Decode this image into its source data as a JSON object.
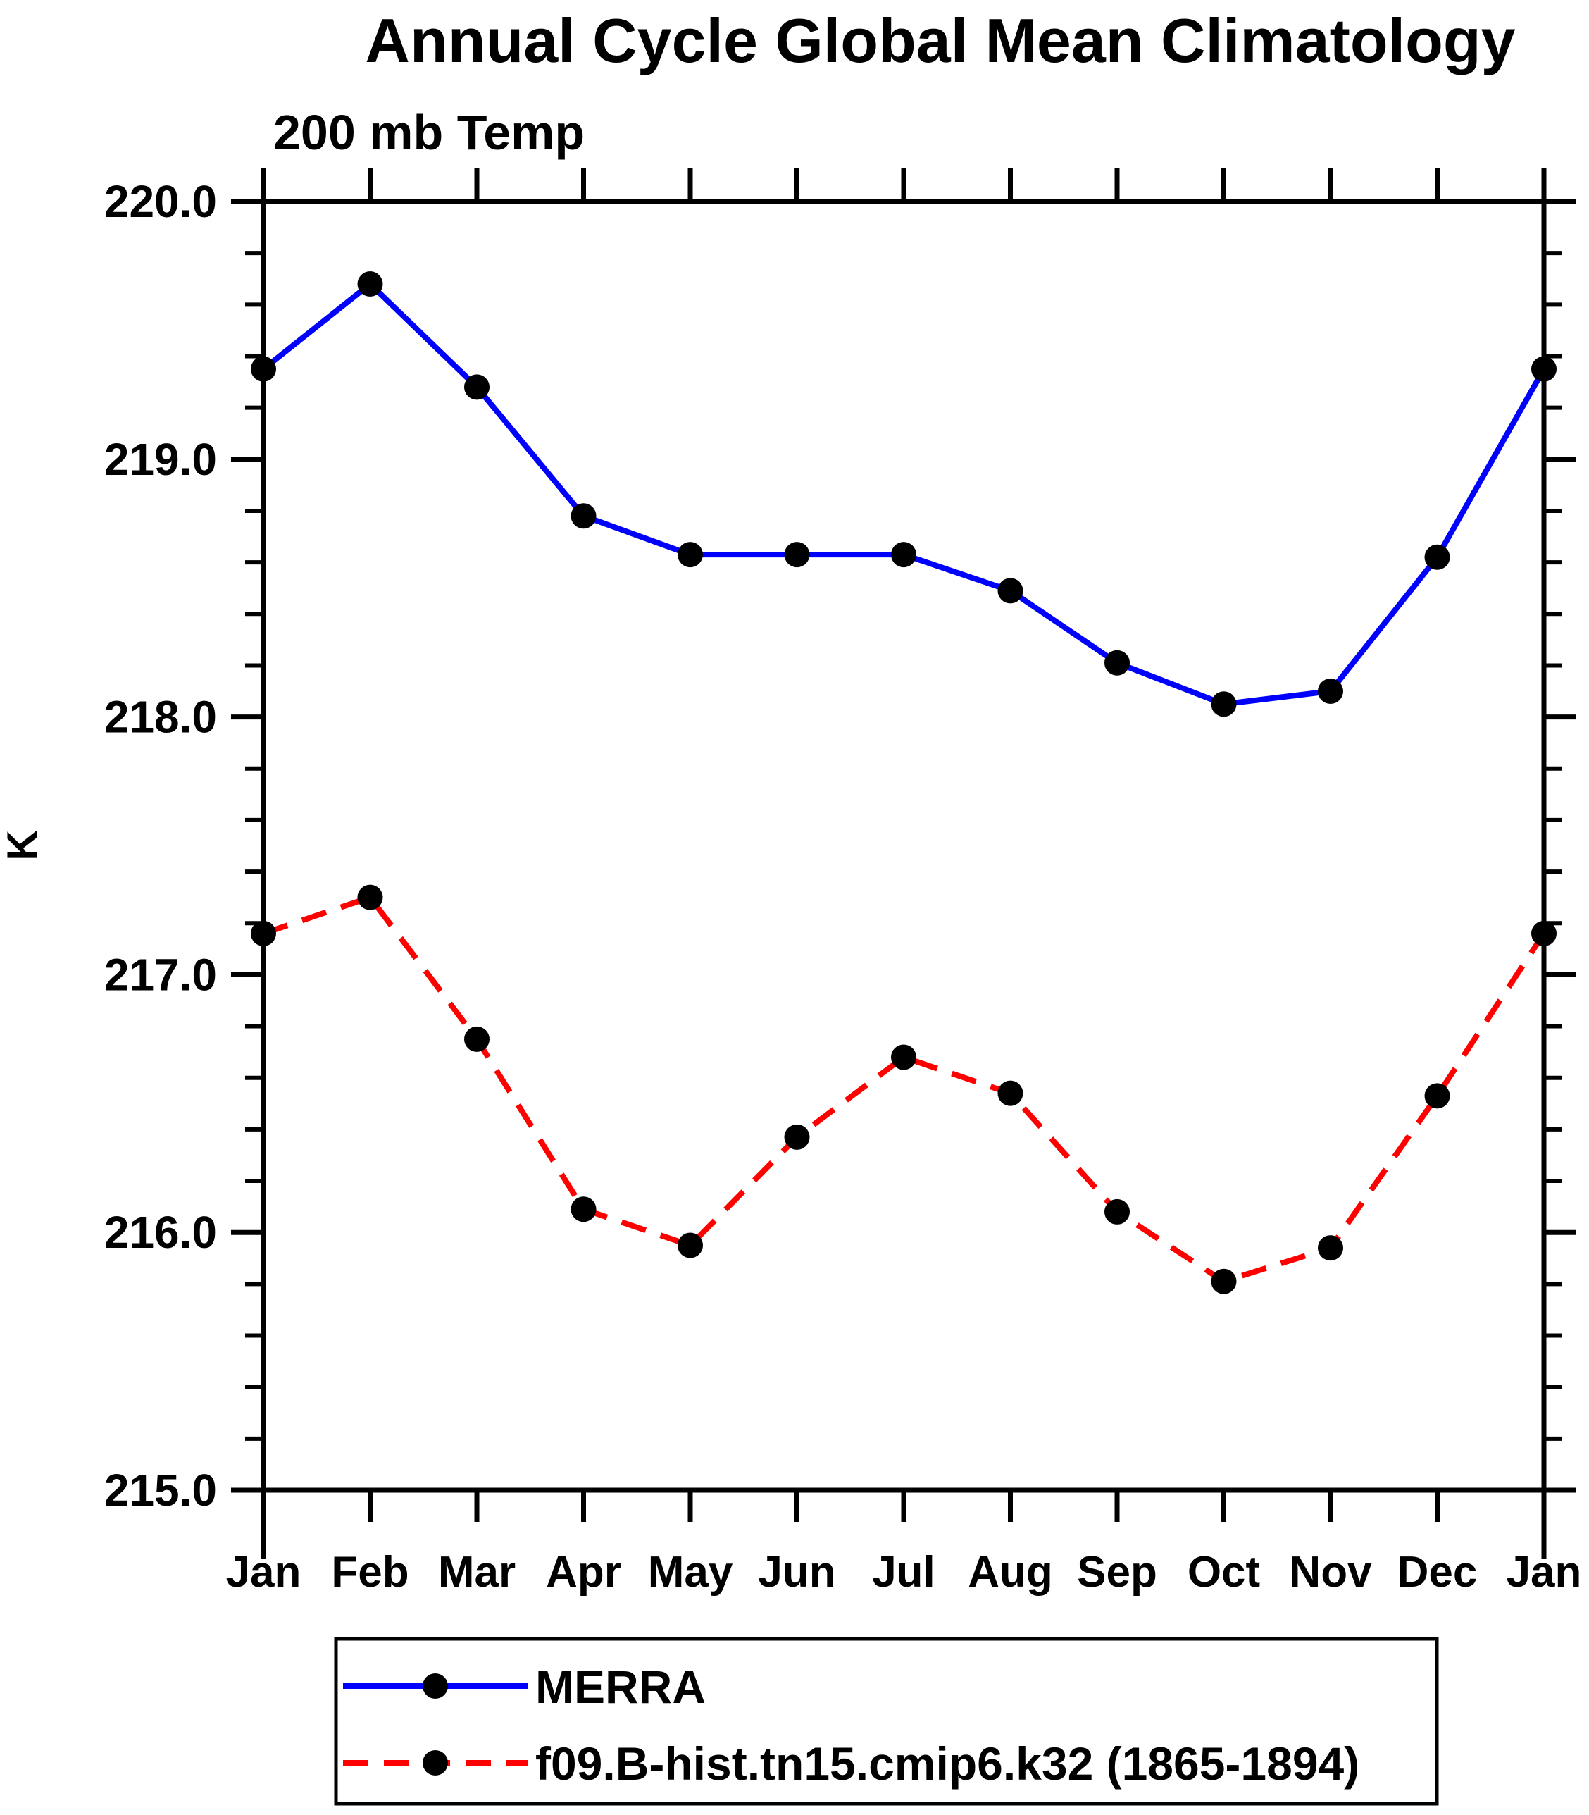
{
  "chart_data": {
    "type": "line",
    "title": "Annual Cycle Global Mean Climatology",
    "subtitle": "200 mb Temp",
    "xlabel": "",
    "ylabel": "K",
    "categories": [
      "Jan",
      "Feb",
      "Mar",
      "Apr",
      "May",
      "Jun",
      "Jul",
      "Aug",
      "Sep",
      "Oct",
      "Nov",
      "Dec",
      "Jan"
    ],
    "series": [
      {
        "name": "MERRA",
        "color": "#0000ff",
        "line_style": "solid",
        "marker": "filled-circle",
        "marker_color": "#000000",
        "values": [
          219.35,
          219.68,
          219.28,
          218.78,
          218.63,
          218.63,
          218.63,
          218.49,
          218.21,
          218.05,
          218.1,
          218.62,
          219.35
        ]
      },
      {
        "name": "f09.B-hist.tn15.cmip6.k32 (1865-1894)",
        "color": "#ff0000",
        "line_style": "dashed",
        "marker": "filled-circle",
        "marker_color": "#000000",
        "values": [
          217.16,
          217.3,
          216.75,
          216.09,
          215.95,
          216.37,
          216.68,
          216.54,
          216.08,
          215.81,
          215.94,
          216.53,
          217.16
        ]
      }
    ],
    "ylim": [
      215.0,
      220.0
    ],
    "yticks": [
      215.0,
      216.0,
      217.0,
      218.0,
      219.0,
      220.0
    ],
    "ytick_labels": [
      "215.0",
      "216.0",
      "217.0",
      "218.0",
      "219.0",
      "220.0"
    ],
    "y_minor_tick_step": 0.2,
    "grid": false,
    "legend_position": "bottom",
    "frame_color": "#000000"
  }
}
